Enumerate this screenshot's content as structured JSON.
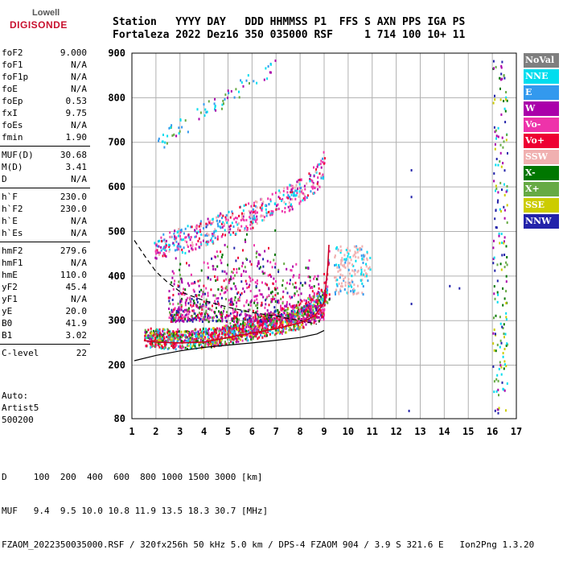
{
  "logo": {
    "top": "Lowell",
    "bottom": "DIGISONDE"
  },
  "header": {
    "row1": "Station   YYYY DAY   DDD HHMMSS P1  FFS S AXN PPS IGA PS",
    "row2": "Fortaleza 2022 Dez16 350 035000 RSF     1 714 100 10+ 11"
  },
  "params": [
    [
      {
        "k": "foF2",
        "v": "9.000"
      },
      {
        "k": "foF1",
        "v": "N/A"
      },
      {
        "k": "foF1p",
        "v": "N/A"
      },
      {
        "k": "foE",
        "v": "N/A"
      },
      {
        "k": "foEp",
        "v": "0.53"
      },
      {
        "k": "fxI",
        "v": "9.75"
      },
      {
        "k": "foEs",
        "v": "N/A"
      },
      {
        "k": "fmin",
        "v": "1.90"
      }
    ],
    [
      {
        "k": "MUF(D)",
        "v": "30.68"
      },
      {
        "k": "M(D)",
        "v": "3.41"
      },
      {
        "k": "D",
        "v": "N/A"
      }
    ],
    [
      {
        "k": "h`F",
        "v": "230.0"
      },
      {
        "k": "h`F2",
        "v": "230.0"
      },
      {
        "k": "h`E",
        "v": "N/A"
      },
      {
        "k": "h`Es",
        "v": "N/A"
      }
    ],
    [
      {
        "k": "hmF2",
        "v": "279.6"
      },
      {
        "k": "hmF1",
        "v": "N/A"
      },
      {
        "k": "hmE",
        "v": "110.0"
      },
      {
        "k": "yF2",
        "v": "45.4"
      },
      {
        "k": "yF1",
        "v": "N/A"
      },
      {
        "k": "yE",
        "v": "20.0"
      },
      {
        "k": "B0",
        "v": "41.9"
      },
      {
        "k": "B1",
        "v": "3.02"
      }
    ],
    [
      {
        "k": "C-level",
        "v": "22"
      }
    ]
  ],
  "auto": {
    "line1": "Auto:",
    "line2": "Artist5",
    "line3": "500200"
  },
  "legend": [
    {
      "label": "NoVal",
      "color": "#7f7f7f"
    },
    {
      "label": "NNE",
      "color": "#00ddee"
    },
    {
      "label": "E",
      "color": "#3399ee"
    },
    {
      "label": "W",
      "color": "#aa00aa"
    },
    {
      "label": "Vo-",
      "color": "#ee33aa"
    },
    {
      "label": "Vo+",
      "color": "#ee0033"
    },
    {
      "label": "SSW",
      "color": "#f0b0b0"
    },
    {
      "label": "X-",
      "color": "#007700"
    },
    {
      "label": "X+",
      "color": "#66aa44"
    },
    {
      "label": "SSE",
      "color": "#cccc00"
    },
    {
      "label": "NNW",
      "color": "#2222aa"
    }
  ],
  "footer": {
    "line1": "D     100  200  400  600  800 1000 1500 3000 [km]",
    "line2": "MUF   9.4  9.5 10.0 10.8 11.9 13.5 18.3 30.7 [MHz]",
    "line3": "FZAOM_2022350035000.RSF / 320fx256h 50 kHz 5.0 km / DPS-4 FZAOM 904 / 3.9 S 321.6 E   Ion2Png 1.3.20"
  },
  "chart_data": {
    "type": "scatter",
    "xlim": [
      1,
      17
    ],
    "ylim": [
      80,
      900
    ],
    "x_ticks": [
      1,
      2,
      3,
      4,
      5,
      6,
      7,
      8,
      9,
      10,
      11,
      12,
      13,
      14,
      15,
      16,
      17
    ],
    "y_ticks": [
      80,
      200,
      300,
      400,
      500,
      600,
      700,
      800,
      900
    ],
    "grid": true,
    "series": [
      {
        "name": "NoVal",
        "color": "#7f7f7f"
      },
      {
        "name": "NNE",
        "color": "#00ddee"
      },
      {
        "name": "E",
        "color": "#3399ee"
      },
      {
        "name": "W",
        "color": "#aa00aa"
      },
      {
        "name": "Vo-",
        "color": "#ee33aa"
      },
      {
        "name": "Vo+",
        "color": "#ee0033"
      },
      {
        "name": "SSW",
        "color": "#f0b0b0"
      },
      {
        "name": "X-",
        "color": "#007700"
      },
      {
        "name": "X+",
        "color": "#66aa44"
      },
      {
        "name": "SSE",
        "color": "#cccc00"
      },
      {
        "name": "NNW",
        "color": "#2222aa"
      }
    ],
    "trace_o": [
      [
        1.5,
        255
      ],
      [
        2,
        252
      ],
      [
        3,
        250
      ],
      [
        4,
        252
      ],
      [
        5,
        262
      ],
      [
        6,
        272
      ],
      [
        7,
        282
      ],
      [
        8,
        295
      ],
      [
        8.6,
        310
      ],
      [
        9,
        340
      ],
      [
        9.15,
        420
      ],
      [
        9.2,
        470
      ]
    ],
    "trace_x": [
      [
        1.7,
        260
      ],
      [
        2.5,
        255
      ],
      [
        3.5,
        255
      ],
      [
        4.5,
        262
      ],
      [
        5.5,
        275
      ],
      [
        6.5,
        290
      ],
      [
        7.5,
        305
      ],
      [
        8.5,
        330
      ],
      [
        9.3,
        360
      ],
      [
        9.6,
        420
      ]
    ],
    "trace_2hop": [
      [
        1.9,
        470
      ],
      [
        3,
        480
      ],
      [
        4,
        500
      ],
      [
        5,
        520
      ],
      [
        6,
        540
      ],
      [
        7,
        565
      ],
      [
        8,
        590
      ],
      [
        8.8,
        630
      ],
      [
        9,
        660
      ]
    ],
    "profile": [
      [
        1.1,
        210
      ],
      [
        2,
        222
      ],
      [
        3,
        232
      ],
      [
        4,
        240
      ],
      [
        5,
        245
      ],
      [
        6,
        250
      ],
      [
        7,
        256
      ],
      [
        8,
        262
      ],
      [
        8.7,
        270
      ],
      [
        9.0,
        278
      ]
    ],
    "dashed": [
      [
        1.1,
        480
      ],
      [
        1.6,
        440
      ],
      [
        2,
        410
      ],
      [
        2.5,
        385
      ],
      [
        3,
        365
      ],
      [
        4,
        345
      ],
      [
        5,
        330
      ],
      [
        6,
        318
      ],
      [
        7,
        310
      ],
      [
        8,
        300
      ],
      [
        8.7,
        292
      ]
    ]
  }
}
